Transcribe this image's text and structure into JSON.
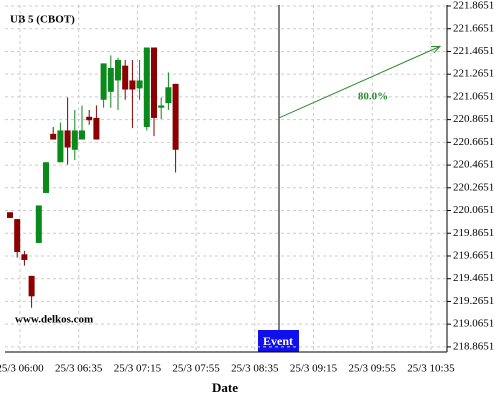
{
  "chart_data": {
    "type": "candlestick",
    "title": "UB 5 (CBOT)",
    "watermark": "www.delkos.com",
    "x_label": "Date",
    "event_label": "Event",
    "x_tick_labels": [
      "25/3 06:00",
      "25/3 06:35",
      "25/3 07:15",
      "25/3 07:55",
      "25/3 08:35",
      "25/3 09:15",
      "25/3 09:55",
      "25/3 10:35"
    ],
    "open": [
      220.05,
      219.99,
      219.68,
      219.49,
      219.78,
      220.22,
      220.74,
      220.49,
      220.77,
      220.6,
      220.69,
      220.89,
      220.88,
      221.04,
      221.11,
      221.21,
      221.34,
      221.21,
      221.14,
      220.8,
      221.5,
      220.97,
      221.01,
      221.18
    ],
    "high": [
      220.05,
      219.99,
      219.71,
      219.49,
      220.11,
      220.49,
      220.8,
      220.84,
      221.06,
      220.95,
      220.99,
      220.95,
      220.99,
      221.36,
      221.43,
      221.41,
      221.39,
      221.39,
      221.39,
      221.5,
      221.5,
      221.06,
      221.28,
      221.18
    ],
    "low": [
      220.0,
      219.65,
      219.58,
      219.21,
      219.78,
      220.22,
      220.69,
      220.49,
      220.47,
      220.51,
      220.69,
      220.82,
      220.69,
      220.97,
      220.97,
      220.95,
      221.04,
      220.79,
      221.04,
      220.77,
      220.72,
      220.87,
      220.95,
      220.4
    ],
    "close": [
      220.0,
      219.7,
      219.63,
      219.31,
      220.11,
      220.49,
      220.69,
      220.77,
      220.62,
      220.77,
      220.77,
      220.86,
      220.69,
      221.36,
      221.32,
      221.39,
      221.13,
      221.13,
      221.21,
      221.5,
      220.88,
      220.99,
      221.15,
      220.6
    ],
    "up_color": "#0a8a1a",
    "down_color": "#8b0000",
    "forecast": {
      "label": "80.0%",
      "start": 220.88,
      "end": 221.51,
      "color": "#2e8b2e"
    },
    "ylim": [
      218.82,
      221.874
    ],
    "yticks": [
      218.8651,
      219.0651,
      219.2651,
      219.4651,
      219.6651,
      219.8651,
      220.0651,
      220.2651,
      220.4651,
      220.6651,
      220.8651,
      221.0651,
      221.2651,
      221.4651,
      221.6651,
      221.8651
    ],
    "grid": true
  }
}
